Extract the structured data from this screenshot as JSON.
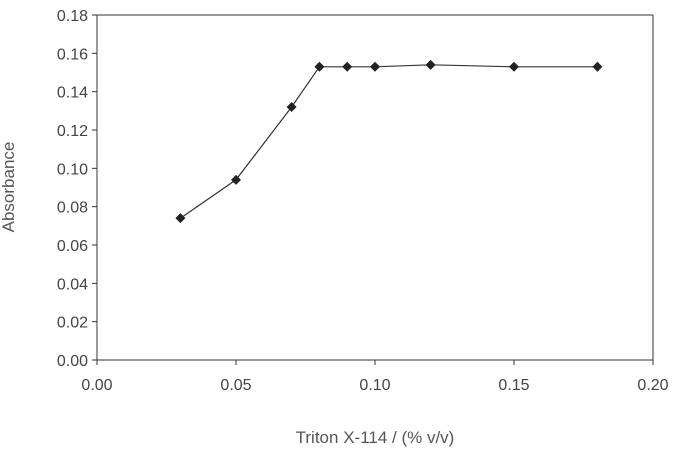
{
  "chart_data": {
    "type": "line",
    "xlabel": "Triton X-114 / (% v/v)",
    "ylabel": "Absorbance",
    "xlim": [
      0.0,
      0.2
    ],
    "ylim": [
      0.0,
      0.18
    ],
    "x_ticks": [
      "0.00",
      "0.05",
      "0.10",
      "0.15",
      "0.20"
    ],
    "y_ticks": [
      "0.00",
      "0.02",
      "0.04",
      "0.06",
      "0.08",
      "0.10",
      "0.12",
      "0.14",
      "0.16",
      "0.18"
    ],
    "grid": false,
    "marker": "diamond",
    "line_color": "#333333",
    "series": [
      {
        "x": [
          0.03,
          0.05,
          0.07,
          0.08,
          0.09,
          0.1,
          0.12,
          0.15,
          0.18
        ],
        "y": [
          0.074,
          0.094,
          0.132,
          0.153,
          0.153,
          0.153,
          0.154,
          0.153,
          0.153
        ]
      }
    ]
  }
}
